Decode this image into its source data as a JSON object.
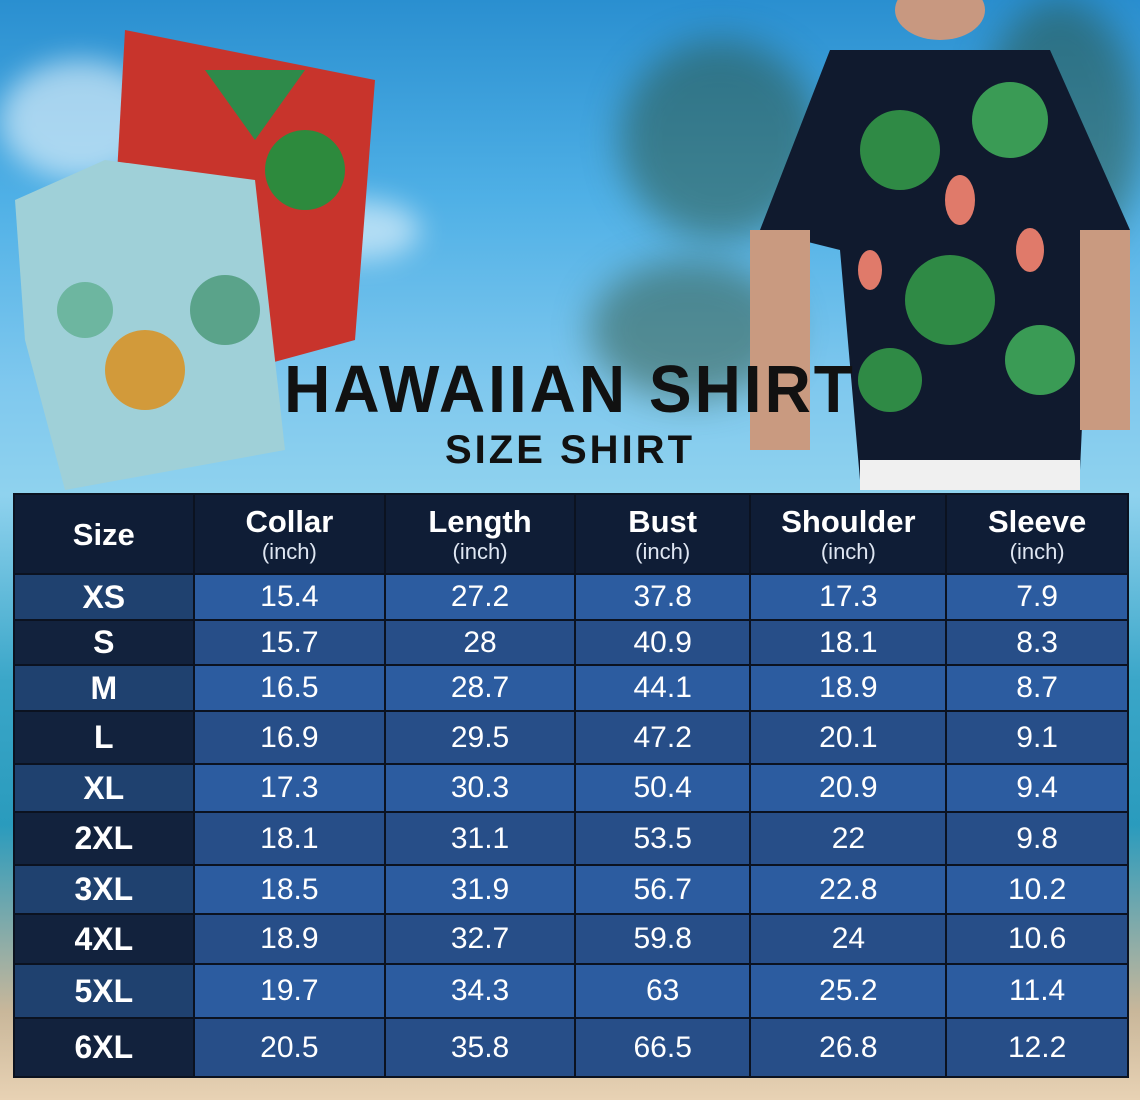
{
  "title": "HAWAIIAN SHIRT",
  "subtitle": "SIZE SHIRT",
  "table": {
    "headers": [
      {
        "label": "Size",
        "unit": ""
      },
      {
        "label": "Collar",
        "unit": "(inch)"
      },
      {
        "label": "Length",
        "unit": "(inch)"
      },
      {
        "label": "Bust",
        "unit": "(inch)"
      },
      {
        "label": "Shoulder",
        "unit": "(inch)"
      },
      {
        "label": "Sleeve",
        "unit": "(inch)"
      }
    ],
    "rows": [
      [
        "XS",
        "15.4",
        "27.2",
        "37.8",
        "17.3",
        "7.9"
      ],
      [
        "S",
        "15.7",
        "28",
        "40.9",
        "18.1",
        "8.3"
      ],
      [
        "M",
        "16.5",
        "28.7",
        "44.1",
        "18.9",
        "8.7"
      ],
      [
        "L",
        "16.9",
        "29.5",
        "47.2",
        "20.1",
        "9.1"
      ],
      [
        "XL",
        "17.3",
        "30.3",
        "50.4",
        "20.9",
        "9.4"
      ],
      [
        "2XL",
        "18.1",
        "31.1",
        "53.5",
        "22",
        "9.8"
      ],
      [
        "3XL",
        "18.5",
        "31.9",
        "56.7",
        "22.8",
        "10.2"
      ],
      [
        "4XL",
        "18.9",
        "32.7",
        "59.8",
        "24",
        "10.6"
      ],
      [
        "5XL",
        "19.7",
        "34.3",
        "63",
        "25.2",
        "11.4"
      ],
      [
        "6XL",
        "20.5",
        "35.8",
        "66.5",
        "26.8",
        "12.2"
      ]
    ]
  },
  "colors": {
    "header_bg": "#0f1d36",
    "row_light": "#2c5ca0",
    "row_dark": "#274e88",
    "size_col": "#12223d"
  }
}
